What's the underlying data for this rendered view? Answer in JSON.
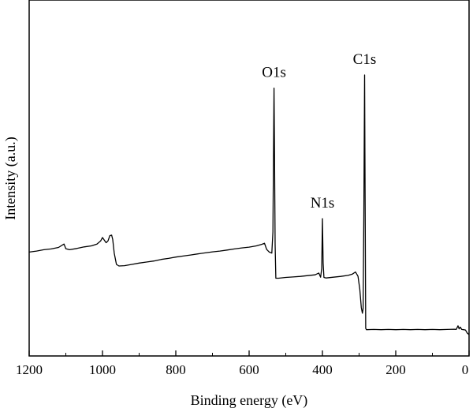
{
  "chart_data": {
    "type": "line",
    "xlabel": "Binding energy (eV)",
    "ylabel": "Intensity (a.u.)",
    "xlim": [
      1200,
      0
    ],
    "ylim": [
      0,
      100
    ],
    "x_reversed": true,
    "y_ticks_visible": false,
    "grid": false,
    "legend": "none",
    "x_ticks": [
      1200,
      1000,
      800,
      600,
      400,
      200,
      0
    ],
    "x_tick_labels": [
      "1200",
      "1000",
      "800",
      "600",
      "400",
      "200",
      "0"
    ],
    "annotations": [
      {
        "text": "C1s",
        "x": 285,
        "y": 100
      },
      {
        "text": "O1s",
        "x": 532,
        "y": 95
      },
      {
        "text": "N1s",
        "x": 400,
        "y": 45
      }
    ],
    "series": [
      {
        "color": "#000000",
        "points": [
          [
            1200,
            32.2
          ],
          [
            1180,
            32.6
          ],
          [
            1160,
            33.1
          ],
          [
            1140,
            33.4
          ],
          [
            1120,
            34.0
          ],
          [
            1105,
            35.3
          ],
          [
            1100,
            33.5
          ],
          [
            1090,
            33.1
          ],
          [
            1070,
            33.6
          ],
          [
            1050,
            34.2
          ],
          [
            1030,
            34.6
          ],
          [
            1015,
            35.3
          ],
          [
            1005,
            36.5
          ],
          [
            1000,
            37.8
          ],
          [
            995,
            36.8
          ],
          [
            990,
            35.8
          ],
          [
            985,
            36.5
          ],
          [
            980,
            38.5
          ],
          [
            975,
            38.7
          ],
          [
            972,
            37.0
          ],
          [
            968,
            31.8
          ],
          [
            962,
            27.5
          ],
          [
            955,
            26.9
          ],
          [
            940,
            27.0
          ],
          [
            920,
            27.5
          ],
          [
            900,
            28.0
          ],
          [
            880,
            28.4
          ],
          [
            860,
            28.8
          ],
          [
            840,
            29.4
          ],
          [
            820,
            29.8
          ],
          [
            800,
            30.3
          ],
          [
            780,
            30.7
          ],
          [
            760,
            31.1
          ],
          [
            740,
            31.5
          ],
          [
            720,
            31.9
          ],
          [
            700,
            32.3
          ],
          [
            680,
            32.6
          ],
          [
            660,
            33.0
          ],
          [
            640,
            33.4
          ],
          [
            620,
            33.8
          ],
          [
            600,
            34.1
          ],
          [
            580,
            34.6
          ],
          [
            565,
            35.2
          ],
          [
            558,
            35.6
          ],
          [
            552,
            33.2
          ],
          [
            545,
            32.2
          ],
          [
            538,
            31.8
          ],
          [
            535,
            40.0
          ],
          [
            533,
            80.0
          ],
          [
            532,
            95.0
          ],
          [
            531,
            75.0
          ],
          [
            529,
            35.0
          ],
          [
            527,
            22.2
          ],
          [
            520,
            22.2
          ],
          [
            500,
            22.5
          ],
          [
            480,
            22.7
          ],
          [
            460,
            22.9
          ],
          [
            440,
            23.2
          ],
          [
            420,
            23.5
          ],
          [
            410,
            24.2
          ],
          [
            405,
            22.6
          ],
          [
            402,
            26.0
          ],
          [
            400,
            45.0
          ],
          [
            398,
            28.0
          ],
          [
            396,
            22.5
          ],
          [
            390,
            22.3
          ],
          [
            370,
            22.6
          ],
          [
            350,
            22.9
          ],
          [
            330,
            23.3
          ],
          [
            318,
            23.8
          ],
          [
            310,
            24.6
          ],
          [
            303,
            23.0
          ],
          [
            298,
            18.0
          ],
          [
            294,
            11.0
          ],
          [
            291,
            8.8
          ],
          [
            289,
            10.5
          ],
          [
            287,
            45.0
          ],
          [
            285,
            100.0
          ],
          [
            284,
            70.0
          ],
          [
            282,
            3.0
          ],
          [
            280,
            2.5
          ],
          [
            260,
            2.6
          ],
          [
            240,
            2.5
          ],
          [
            220,
            2.6
          ],
          [
            200,
            2.5
          ],
          [
            180,
            2.6
          ],
          [
            160,
            2.5
          ],
          [
            140,
            2.6
          ],
          [
            120,
            2.5
          ],
          [
            100,
            2.6
          ],
          [
            80,
            2.5
          ],
          [
            60,
            2.6
          ],
          [
            40,
            2.7
          ],
          [
            35,
            2.6
          ],
          [
            30,
            4.0
          ],
          [
            27,
            2.8
          ],
          [
            24,
            3.5
          ],
          [
            20,
            2.6
          ],
          [
            15,
            2.5
          ],
          [
            10,
            2.4
          ],
          [
            5,
            1.2
          ],
          [
            0,
            0.6
          ]
        ]
      }
    ]
  }
}
